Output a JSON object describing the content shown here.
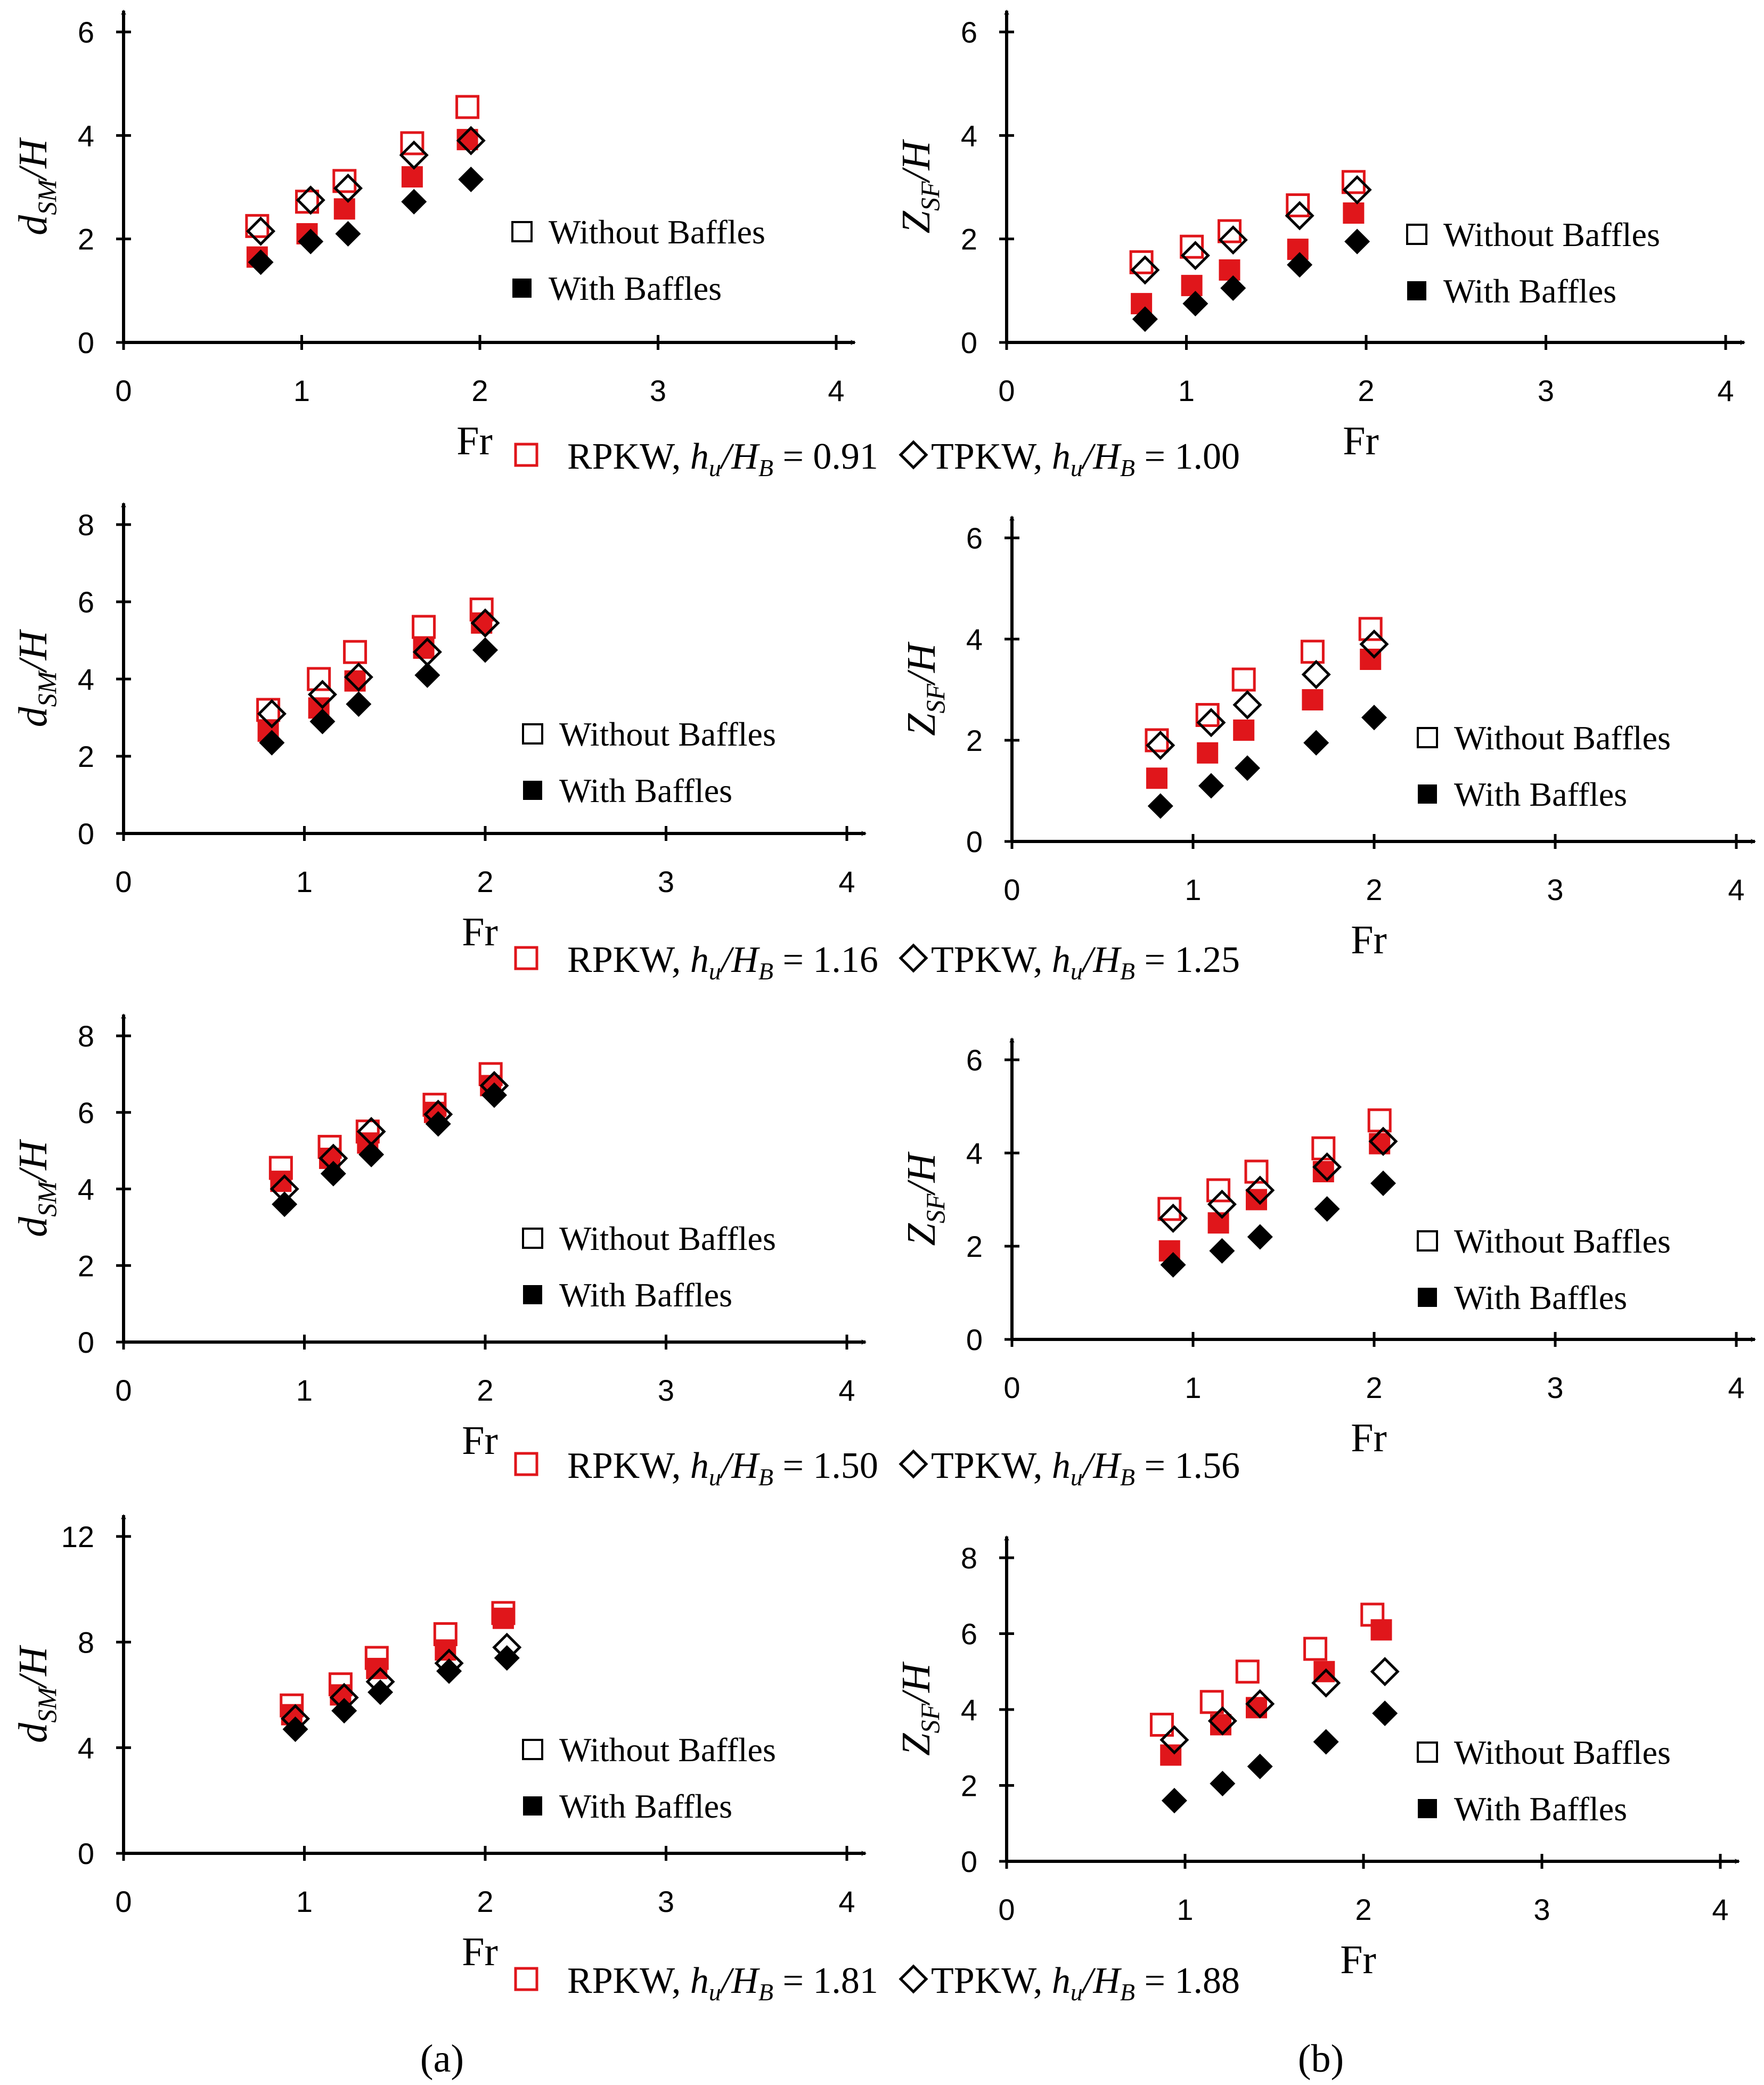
{
  "figure": {
    "caption_row_labels": [
      {
        "rpkw": "RPKW,",
        "rpkw_ratio": "= 0.91",
        "tpkw": "TPKW,",
        "tpkw_ratio": "= 1.00"
      },
      {
        "rpkw": "RPKW,",
        "rpkw_ratio": "= 1.16",
        "tpkw": "TPKW,",
        "tpkw_ratio": "= 1.25"
      },
      {
        "rpkw": "RPKW,",
        "rpkw_ratio": "= 1.50",
        "tpkw": "TPKW,",
        "tpkw_ratio": "= 1.56"
      },
      {
        "rpkw": "RPKW,",
        "rpkw_ratio": "= 1.81",
        "tpkw": "TPKW,",
        "tpkw_ratio": "= 1.88"
      }
    ],
    "ratio_label": {
      "h": "h",
      "u": "u",
      "slash": "/",
      "H": "H",
      "B": "B"
    },
    "subfigure_labels": [
      "(a)",
      "(b)"
    ],
    "legend": {
      "without": "Without Baffles",
      "with": "With Baffles"
    },
    "colors": {
      "rpkw": "#e0161b",
      "tpkw": "#000000"
    }
  },
  "chart_data": [
    {
      "id": "a1",
      "type": "scatter",
      "xlabel": "Fr",
      "ylabel": "dSM/H",
      "ylabel_main": "d",
      "ylabel_sub": "SM",
      "ylabel_rest": "/H",
      "xlim": [
        0,
        4
      ],
      "ylim": [
        0,
        6
      ],
      "xticks": [
        "0",
        "1",
        "2",
        "3",
        "4"
      ],
      "yticks": [
        "0",
        "2",
        "4",
        "6"
      ],
      "series": [
        {
          "name": "RPKW Without Baffles",
          "marker": "square-open",
          "color": "#e0161b",
          "x": [
            0.75,
            1.03,
            1.24,
            1.62,
            1.93
          ],
          "y": [
            2.25,
            2.72,
            3.12,
            3.85,
            4.55
          ]
        },
        {
          "name": "RPKW With Baffles",
          "marker": "square-filled",
          "color": "#e0161b",
          "x": [
            0.75,
            1.03,
            1.24,
            1.62,
            1.93
          ],
          "y": [
            1.65,
            2.1,
            2.58,
            3.2,
            3.92
          ]
        },
        {
          "name": "TPKW Without Baffles",
          "marker": "diamond-open",
          "color": "#000000",
          "x": [
            0.77,
            1.05,
            1.26,
            1.63,
            1.95
          ],
          "y": [
            2.15,
            2.75,
            2.98,
            3.62,
            3.9
          ]
        },
        {
          "name": "TPKW With Baffles",
          "marker": "diamond-filled",
          "color": "#000000",
          "x": [
            0.77,
            1.05,
            1.26,
            1.63,
            1.95
          ],
          "y": [
            1.55,
            1.95,
            2.1,
            2.72,
            3.15
          ]
        }
      ]
    },
    {
      "id": "b1",
      "type": "scatter",
      "xlabel": "Fr",
      "ylabel": "ZSF/H",
      "ylabel_main": "Z",
      "ylabel_sub": "SF",
      "ylabel_rest": "/H",
      "xlim": [
        0,
        4
      ],
      "ylim": [
        0,
        6
      ],
      "xticks": [
        "0",
        "1",
        "2",
        "3",
        "4"
      ],
      "yticks": [
        "0",
        "2",
        "4",
        "6"
      ],
      "series": [
        {
          "name": "RPKW Without Baffles",
          "marker": "square-open",
          "color": "#e0161b",
          "x": [
            0.75,
            1.03,
            1.24,
            1.62,
            1.93
          ],
          "y": [
            1.55,
            1.85,
            2.15,
            2.65,
            3.1
          ]
        },
        {
          "name": "RPKW With Baffles",
          "marker": "square-filled",
          "color": "#e0161b",
          "x": [
            0.75,
            1.03,
            1.24,
            1.62,
            1.93
          ],
          "y": [
            0.75,
            1.1,
            1.4,
            1.8,
            2.5
          ]
        },
        {
          "name": "TPKW Without Baffles",
          "marker": "diamond-open",
          "color": "#000000",
          "x": [
            0.77,
            1.05,
            1.26,
            1.63,
            1.95
          ],
          "y": [
            1.4,
            1.68,
            1.98,
            2.45,
            2.95
          ]
        },
        {
          "name": "TPKW With Baffles",
          "marker": "diamond-filled",
          "color": "#000000",
          "x": [
            0.77,
            1.05,
            1.26,
            1.63,
            1.95
          ],
          "y": [
            0.45,
            0.75,
            1.05,
            1.5,
            1.95
          ]
        }
      ]
    },
    {
      "id": "a2",
      "type": "scatter",
      "xlabel": "Fr",
      "ylabel": "dSM/H",
      "ylabel_main": "d",
      "ylabel_sub": "SM",
      "ylabel_rest": "/H",
      "xlim": [
        0,
        4
      ],
      "ylim": [
        0,
        8
      ],
      "xticks": [
        "0",
        "1",
        "2",
        "3",
        "4"
      ],
      "yticks": [
        "0",
        "2",
        "4",
        "6",
        "8"
      ],
      "series": [
        {
          "name": "RPKW Without Baffles",
          "marker": "square-open",
          "color": "#e0161b",
          "x": [
            0.8,
            1.08,
            1.28,
            1.66,
            1.98
          ],
          "y": [
            3.2,
            4.0,
            4.7,
            5.35,
            5.8
          ]
        },
        {
          "name": "RPKW With Baffles",
          "marker": "square-filled",
          "color": "#e0161b",
          "x": [
            0.8,
            1.08,
            1.28,
            1.66,
            1.98
          ],
          "y": [
            2.65,
            3.25,
            3.95,
            4.8,
            5.45
          ]
        },
        {
          "name": "TPKW Without Baffles",
          "marker": "diamond-open",
          "color": "#000000",
          "x": [
            0.82,
            1.1,
            1.3,
            1.68,
            2.0
          ],
          "y": [
            3.1,
            3.6,
            4.05,
            4.7,
            5.45
          ]
        },
        {
          "name": "TPKW With Baffles",
          "marker": "diamond-filled",
          "color": "#000000",
          "x": [
            0.82,
            1.1,
            1.3,
            1.68,
            2.0
          ],
          "y": [
            2.35,
            2.9,
            3.35,
            4.1,
            4.75
          ]
        }
      ]
    },
    {
      "id": "b2",
      "type": "scatter",
      "xlabel": "Fr",
      "ylabel": "ZSF/H",
      "ylabel_main": "Z",
      "ylabel_sub": "SF",
      "ylabel_rest": "/H",
      "xlim": [
        0,
        4
      ],
      "ylim": [
        0,
        6
      ],
      "xticks": [
        "0",
        "1",
        "2",
        "3",
        "4"
      ],
      "yticks": [
        "0",
        "2",
        "4",
        "6"
      ],
      "series": [
        {
          "name": "RPKW Without Baffles",
          "marker": "square-open",
          "color": "#e0161b",
          "x": [
            0.8,
            1.08,
            1.28,
            1.66,
            1.98
          ],
          "y": [
            2.0,
            2.5,
            3.2,
            3.75,
            4.2
          ]
        },
        {
          "name": "RPKW With Baffles",
          "marker": "square-filled",
          "color": "#e0161b",
          "x": [
            0.8,
            1.08,
            1.28,
            1.66,
            1.98
          ],
          "y": [
            1.25,
            1.75,
            2.2,
            2.8,
            3.6
          ]
        },
        {
          "name": "TPKW Without Baffles",
          "marker": "diamond-open",
          "color": "#000000",
          "x": [
            0.82,
            1.1,
            1.3,
            1.68,
            2.0
          ],
          "y": [
            1.9,
            2.35,
            2.7,
            3.3,
            3.9
          ]
        },
        {
          "name": "TPKW With Baffles",
          "marker": "diamond-filled",
          "color": "#000000",
          "x": [
            0.82,
            1.1,
            1.3,
            1.68,
            2.0
          ],
          "y": [
            0.7,
            1.1,
            1.45,
            1.95,
            2.45
          ]
        }
      ]
    },
    {
      "id": "a3",
      "type": "scatter",
      "xlabel": "Fr",
      "ylabel": "dSM/H",
      "ylabel_main": "d",
      "ylabel_sub": "SM",
      "ylabel_rest": "/H",
      "xlim": [
        0,
        4
      ],
      "ylim": [
        0,
        8
      ],
      "xticks": [
        "0",
        "1",
        "2",
        "3",
        "4"
      ],
      "yticks": [
        "0",
        "2",
        "4",
        "6",
        "8"
      ],
      "series": [
        {
          "name": "RPKW Without Baffles",
          "marker": "square-open",
          "color": "#e0161b",
          "x": [
            0.87,
            1.14,
            1.35,
            1.72,
            2.03
          ],
          "y": [
            4.55,
            5.1,
            5.5,
            6.2,
            7.0
          ]
        },
        {
          "name": "RPKW With Baffles",
          "marker": "square-filled",
          "color": "#e0161b",
          "x": [
            0.87,
            1.14,
            1.35,
            1.72,
            2.03
          ],
          "y": [
            4.2,
            4.8,
            5.2,
            6.0,
            6.7
          ]
        },
        {
          "name": "TPKW Without Baffles",
          "marker": "diamond-open",
          "color": "#000000",
          "x": [
            0.89,
            1.16,
            1.37,
            1.74,
            2.05
          ],
          "y": [
            4.0,
            4.8,
            5.5,
            5.95,
            6.7
          ]
        },
        {
          "name": "TPKW With Baffles",
          "marker": "diamond-filled",
          "color": "#000000",
          "x": [
            0.89,
            1.16,
            1.37,
            1.74,
            2.05
          ],
          "y": [
            3.6,
            4.4,
            4.9,
            5.7,
            6.45
          ]
        }
      ]
    },
    {
      "id": "b3",
      "type": "scatter",
      "xlabel": "Fr",
      "ylabel": "ZSF/H",
      "ylabel_main": "Z",
      "ylabel_sub": "SF",
      "ylabel_rest": "/H",
      "xlim": [
        0,
        4
      ],
      "ylim": [
        0,
        6
      ],
      "xticks": [
        "0",
        "1",
        "2",
        "3",
        "4"
      ],
      "yticks": [
        "0",
        "2",
        "4",
        "6"
      ],
      "series": [
        {
          "name": "RPKW Without Baffles",
          "marker": "square-open",
          "color": "#e0161b",
          "x": [
            0.87,
            1.14,
            1.35,
            1.72,
            2.03
          ],
          "y": [
            2.8,
            3.2,
            3.6,
            4.1,
            4.7
          ]
        },
        {
          "name": "RPKW With Baffles",
          "marker": "square-filled",
          "color": "#e0161b",
          "x": [
            0.87,
            1.14,
            1.35,
            1.72,
            2.03
          ],
          "y": [
            1.9,
            2.5,
            3.0,
            3.6,
            4.2
          ]
        },
        {
          "name": "TPKW Without Baffles",
          "marker": "diamond-open",
          "color": "#000000",
          "x": [
            0.89,
            1.16,
            1.37,
            1.74,
            2.05
          ],
          "y": [
            2.6,
            2.9,
            3.2,
            3.7,
            4.25
          ]
        },
        {
          "name": "TPKW With Baffles",
          "marker": "diamond-filled",
          "color": "#000000",
          "x": [
            0.89,
            1.16,
            1.37,
            1.74,
            2.05
          ],
          "y": [
            1.6,
            1.9,
            2.2,
            2.8,
            3.35
          ]
        }
      ]
    },
    {
      "id": "a4",
      "type": "scatter",
      "xlabel": "Fr",
      "ylabel": "dSM/H",
      "ylabel_main": "d",
      "ylabel_sub": "SM",
      "ylabel_rest": "/H",
      "xlim": [
        0,
        4
      ],
      "ylim": [
        0,
        12
      ],
      "xticks": [
        "0",
        "1",
        "2",
        "3",
        "4"
      ],
      "yticks": [
        "0",
        "4",
        "8",
        "12"
      ],
      "series": [
        {
          "name": "RPKW Without Baffles",
          "marker": "square-open",
          "color": "#e0161b",
          "x": [
            0.93,
            1.2,
            1.4,
            1.78,
            2.1
          ],
          "y": [
            5.6,
            6.4,
            7.4,
            8.3,
            9.1
          ]
        },
        {
          "name": "RPKW With Baffles",
          "marker": "square-filled",
          "color": "#e0161b",
          "x": [
            0.93,
            1.2,
            1.4,
            1.78,
            2.1
          ],
          "y": [
            5.25,
            6.0,
            7.0,
            7.7,
            8.9
          ]
        },
        {
          "name": "TPKW Without Baffles",
          "marker": "diamond-open",
          "color": "#000000",
          "x": [
            0.95,
            1.22,
            1.42,
            1.8,
            2.12
          ],
          "y": [
            5.1,
            5.9,
            6.5,
            7.2,
            7.8
          ]
        },
        {
          "name": "TPKW With Baffles",
          "marker": "diamond-filled",
          "color": "#000000",
          "x": [
            0.95,
            1.22,
            1.42,
            1.8,
            2.12
          ],
          "y": [
            4.7,
            5.4,
            6.1,
            6.9,
            7.4
          ]
        }
      ]
    },
    {
      "id": "b4",
      "type": "scatter",
      "xlabel": "Fr",
      "ylabel": "ZSF/H",
      "ylabel_main": "Z",
      "ylabel_sub": "SF",
      "ylabel_rest": "/H",
      "xlim": [
        0,
        4
      ],
      "ylim": [
        0,
        8
      ],
      "xticks": [
        "0",
        "1",
        "2",
        "3",
        "4"
      ],
      "yticks": [
        "0",
        "2",
        "4",
        "6",
        "8"
      ],
      "series": [
        {
          "name": "RPKW Without Baffles",
          "marker": "square-open",
          "color": "#e0161b",
          "x": [
            0.87,
            1.15,
            1.35,
            1.73,
            2.05
          ],
          "y": [
            3.6,
            4.2,
            5.0,
            5.6,
            6.5
          ]
        },
        {
          "name": "RPKW With Baffles",
          "marker": "square-filled",
          "color": "#e0161b",
          "x": [
            0.92,
            1.2,
            1.4,
            1.78,
            2.1
          ],
          "y": [
            2.8,
            3.6,
            4.05,
            5.0,
            6.1
          ]
        },
        {
          "name": "TPKW Without Baffles",
          "marker": "diamond-open",
          "color": "#000000",
          "x": [
            0.94,
            1.21,
            1.42,
            1.79,
            2.12
          ],
          "y": [
            3.2,
            3.7,
            4.15,
            4.7,
            5.0
          ]
        },
        {
          "name": "TPKW With Baffles",
          "marker": "diamond-filled",
          "color": "#000000",
          "x": [
            0.94,
            1.21,
            1.42,
            1.79,
            2.12
          ],
          "y": [
            1.6,
            2.05,
            2.5,
            3.15,
            3.9
          ]
        }
      ]
    }
  ]
}
